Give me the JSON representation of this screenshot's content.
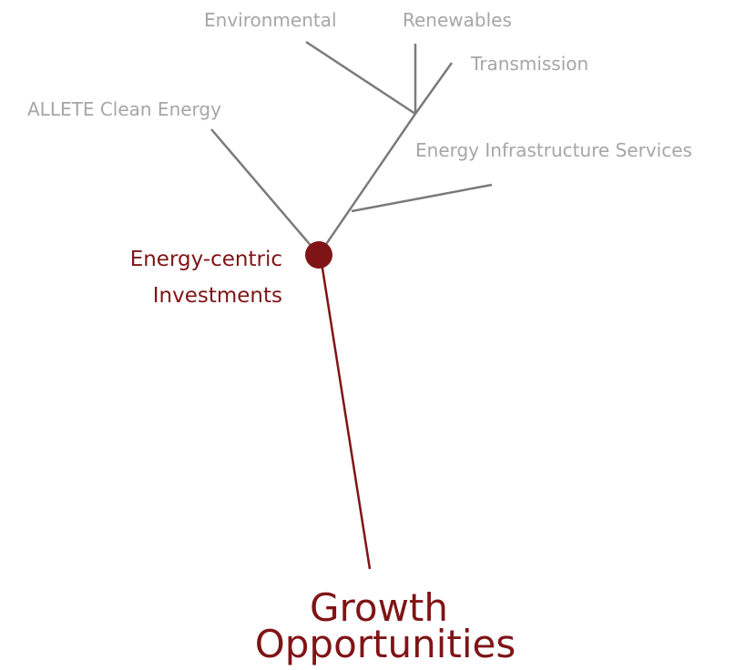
{
  "root": {
    "label": "Growth Opportunities",
    "lines": [
      "Growth",
      "Opportunities"
    ]
  },
  "hub": {
    "lines": [
      "Energy-centric",
      "Investments"
    ]
  },
  "branches": [
    "ALLETE Clean Energy",
    "Environmental",
    "Renewables",
    "Transmission",
    "Energy Infrastructure Services"
  ]
}
